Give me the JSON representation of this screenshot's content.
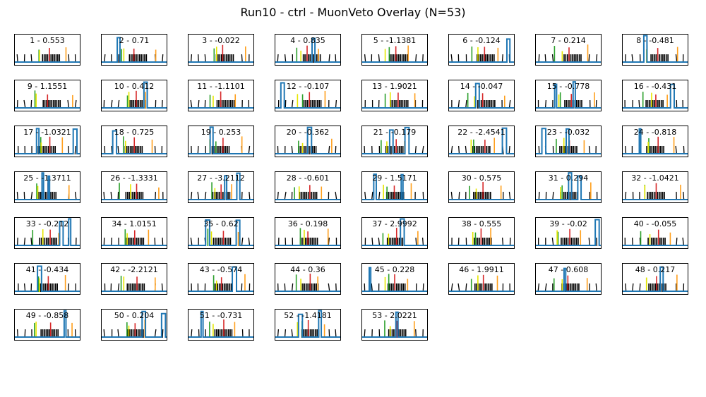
{
  "title": "Run10 - ctrl - MuonVeto Overlay (N=53)",
  "colors": {
    "trace": "#1f77b4",
    "ticks": "#000000",
    "marker_green": "#2ca02c",
    "marker_yellow": "#e6e600",
    "marker_red": "#d62728",
    "marker_orange": "#ff9f1c"
  },
  "chart_data": {
    "type": "line",
    "layout": "small-multiples 8 columns",
    "panels": [
      {
        "label": "1 - 0.553"
      },
      {
        "label": "2 - 0.71"
      },
      {
        "label": "3 - -0.022"
      },
      {
        "label": "4 - 0.835"
      },
      {
        "label": "5 - -1.1381"
      },
      {
        "label": "6 - -0.124"
      },
      {
        "label": "7 - 0.214"
      },
      {
        "label": "8 - -0.481"
      },
      {
        "label": "9 - 1.1551"
      },
      {
        "label": "10 - 0.412"
      },
      {
        "label": "11 - -1.1101"
      },
      {
        "label": "12 - -0.107"
      },
      {
        "label": "13 - 1.9021"
      },
      {
        "label": "14 - -0.047"
      },
      {
        "label": "15 - -0.778"
      },
      {
        "label": "16 - -0.431"
      },
      {
        "label": "17 - -1.0321"
      },
      {
        "label": "18 - 0.725"
      },
      {
        "label": "19 - 0.253"
      },
      {
        "label": "20 - -0.362"
      },
      {
        "label": "21 - -0.179"
      },
      {
        "label": "22 - -2.4541"
      },
      {
        "label": "23 - -0.032"
      },
      {
        "label": "24 - -0.818"
      },
      {
        "label": "25 - -1.3711"
      },
      {
        "label": "26 - -1.3331"
      },
      {
        "label": "27 - -3.2112"
      },
      {
        "label": "28 - -0.601"
      },
      {
        "label": "29 - 1.5171"
      },
      {
        "label": "30 - 0.575"
      },
      {
        "label": "31 - 0.294"
      },
      {
        "label": "32 - -1.0421"
      },
      {
        "label": "33 - -0.212"
      },
      {
        "label": "34 - 1.0151"
      },
      {
        "label": "35 - 0.62"
      },
      {
        "label": "36 - 0.198"
      },
      {
        "label": "37 - 2.9992"
      },
      {
        "label": "38 - 0.555"
      },
      {
        "label": "39 - -0.02"
      },
      {
        "label": "40 - -0.055"
      },
      {
        "label": "41 - -0.434"
      },
      {
        "label": "42 - -2.2121"
      },
      {
        "label": "43 - -0.574"
      },
      {
        "label": "44 - 0.36"
      },
      {
        "label": "45 - 0.228"
      },
      {
        "label": "46 - 1.9911"
      },
      {
        "label": "47 - 0.608"
      },
      {
        "label": "48 - 0.217"
      },
      {
        "label": "49 - -0.858"
      },
      {
        "label": "50 - 0.204"
      },
      {
        "label": "51 - -0.731"
      },
      {
        "label": "52 - -1.4181"
      },
      {
        "label": "53 - 2.0221"
      }
    ]
  }
}
